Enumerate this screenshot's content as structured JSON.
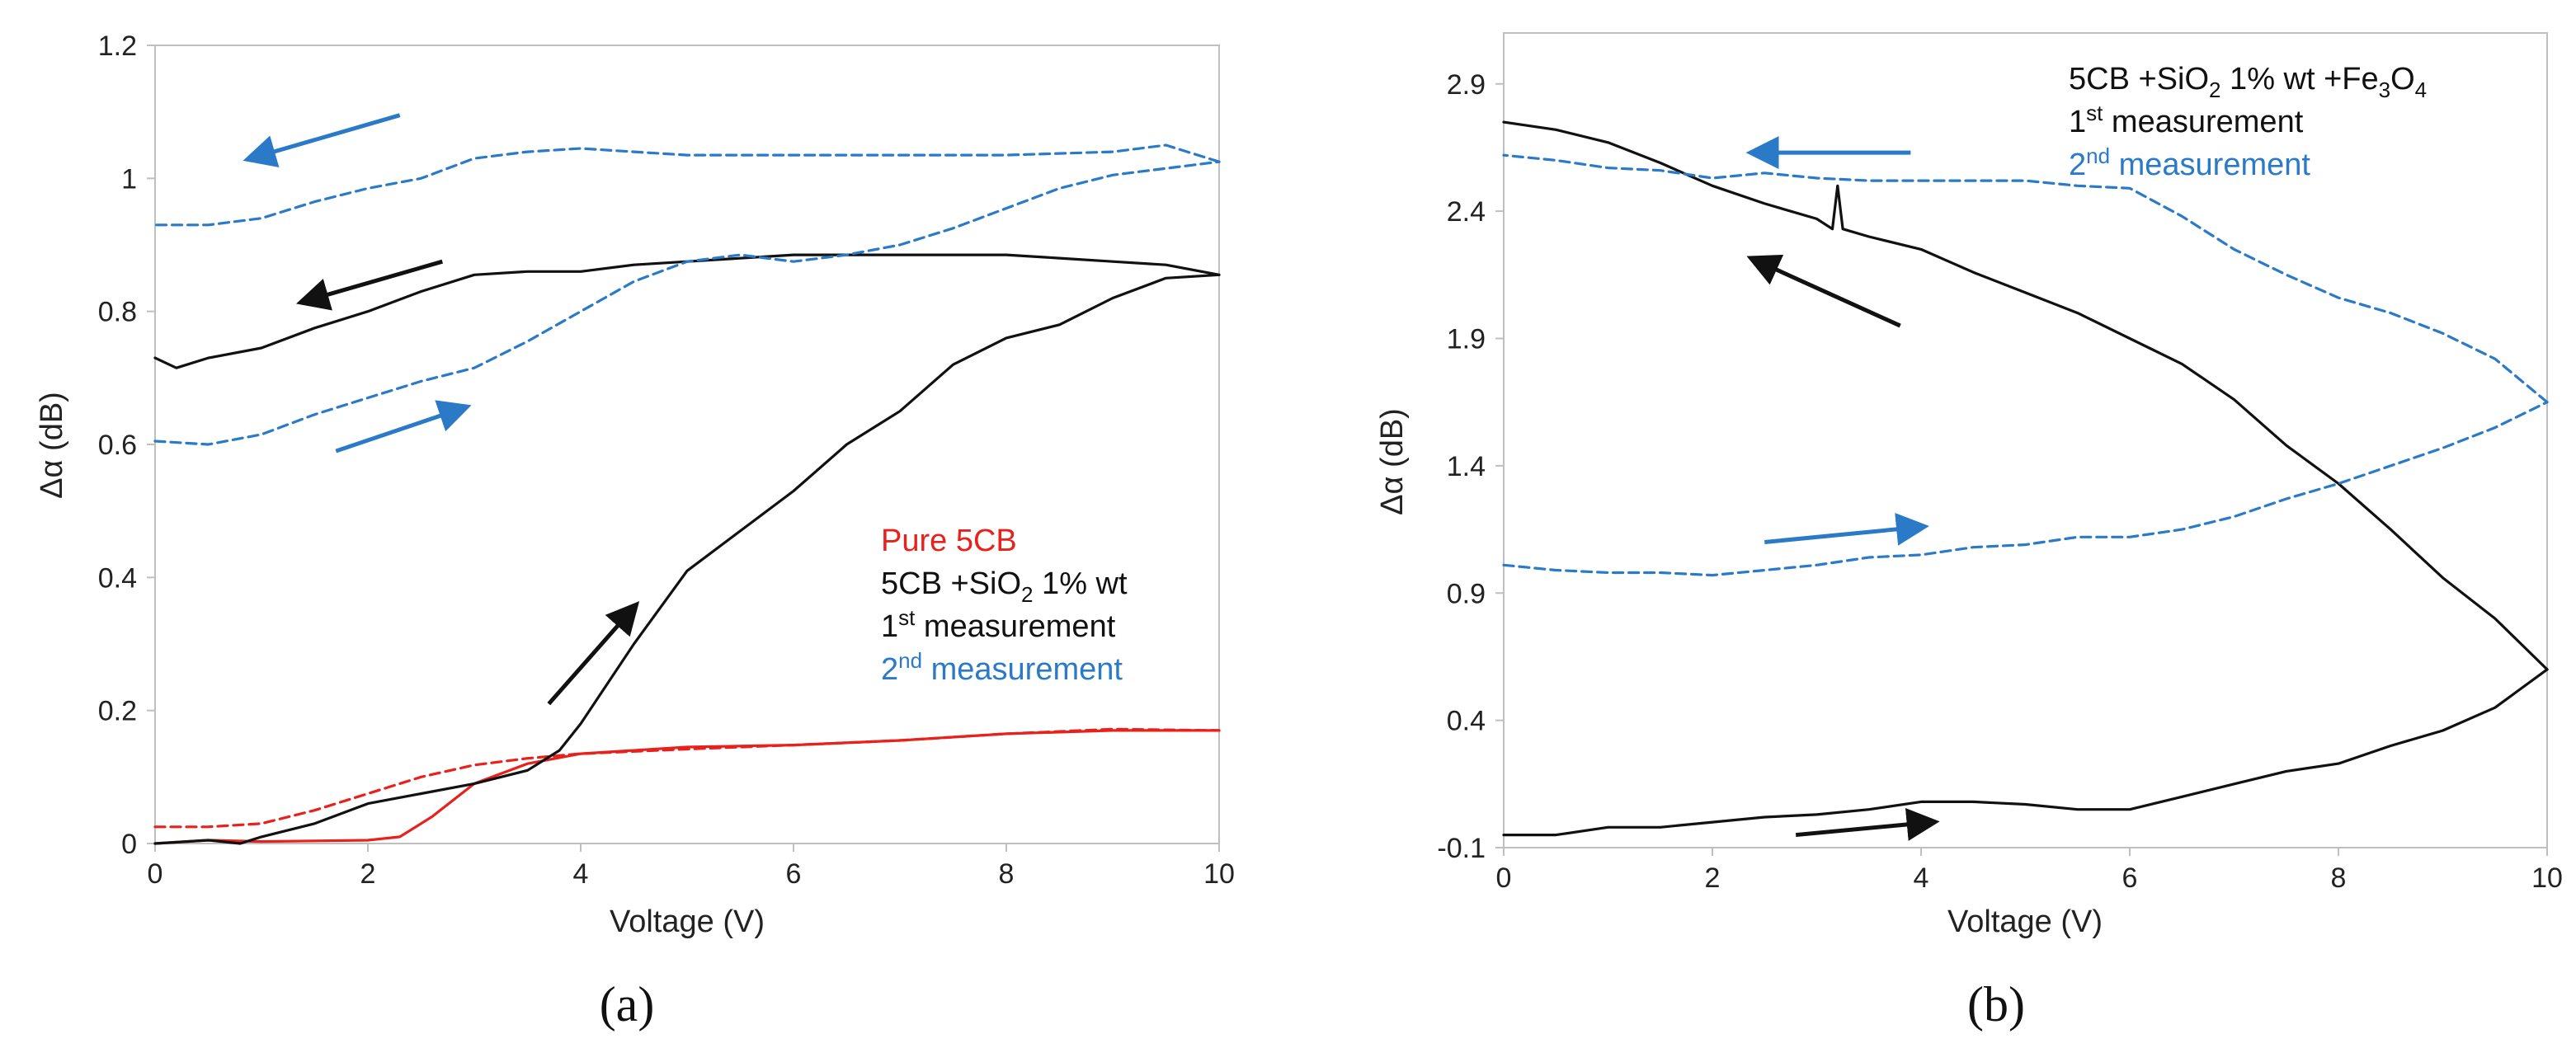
{
  "chart_data": [
    {
      "type": "line",
      "panel_label": "(a)",
      "xlabel": "Voltage (V)",
      "ylabel": "Δα (dB)",
      "xlim": [
        0,
        10
      ],
      "ylim": [
        0,
        1.2
      ],
      "xticks": [
        0,
        2,
        4,
        6,
        8,
        10
      ],
      "yticks": [
        0,
        0.2,
        0.4,
        0.6,
        0.8,
        1,
        1.2
      ],
      "grid": false,
      "legend": [
        {
          "text": "Pure 5CB",
          "color": "#e8211d"
        },
        {
          "text": "5CB +SiO",
          "sub": "2",
          "tail": " 1% wt",
          "color": "#111111"
        },
        {
          "text": "1",
          "sup": "st",
          "tail": " measurement",
          "color": "#111111"
        },
        {
          "text": "2",
          "sup": "nd",
          "tail": " measurement",
          "color": "#2a7ac8"
        }
      ],
      "series": [
        {
          "name": "Pure 5CB (1st, increasing)",
          "color": "#e8211d",
          "dash": false,
          "x": [
            0,
            0.5,
            1,
            1.5,
            2,
            2.3,
            2.6,
            3,
            3.5,
            4,
            5,
            6,
            7,
            8,
            9,
            10
          ],
          "y": [
            0,
            0.005,
            0.003,
            0.004,
            0.005,
            0.01,
            0.04,
            0.09,
            0.12,
            0.135,
            0.145,
            0.148,
            0.155,
            0.165,
            0.17,
            0.17
          ]
        },
        {
          "name": "Pure 5CB (2nd)",
          "color": "#e8211d",
          "dash": true,
          "x": [
            0,
            0.5,
            1,
            1.5,
            2,
            2.5,
            3,
            3.5,
            4,
            5,
            6,
            7,
            8,
            9,
            10
          ],
          "y": [
            0.025,
            0.025,
            0.03,
            0.05,
            0.075,
            0.1,
            0.118,
            0.128,
            0.135,
            0.142,
            0.148,
            0.155,
            0.165,
            0.172,
            0.17
          ]
        },
        {
          "name": "5CB +SiO2 1st increasing",
          "color": "#111111",
          "dash": false,
          "x": [
            0,
            0.5,
            0.8,
            1,
            1.5,
            2,
            2.5,
            3,
            3.5,
            3.8,
            4,
            4.5,
            5,
            5.5,
            6,
            6.5,
            7,
            7.5,
            8,
            8.5,
            9,
            9.5,
            10
          ],
          "y": [
            0,
            0.005,
            0.0,
            0.01,
            0.03,
            0.06,
            0.075,
            0.09,
            0.11,
            0.14,
            0.18,
            0.3,
            0.41,
            0.47,
            0.53,
            0.6,
            0.65,
            0.72,
            0.76,
            0.78,
            0.82,
            0.85,
            0.855
          ]
        },
        {
          "name": "5CB +SiO2 1st decreasing",
          "color": "#111111",
          "dash": false,
          "x": [
            10,
            9.5,
            9,
            8.5,
            8,
            7,
            6,
            5,
            4.5,
            4,
            3.5,
            3,
            2.5,
            2,
            1.5,
            1,
            0.5,
            0.2,
            0
          ],
          "y": [
            0.855,
            0.87,
            0.875,
            0.88,
            0.885,
            0.885,
            0.885,
            0.875,
            0.87,
            0.86,
            0.86,
            0.855,
            0.83,
            0.8,
            0.775,
            0.745,
            0.73,
            0.715,
            0.73
          ]
        },
        {
          "name": "2nd measurement increasing",
          "color": "#2a7ac8",
          "dash": true,
          "x": [
            0,
            0.5,
            1,
            1.5,
            2,
            2.5,
            3,
            3.5,
            4,
            4.5,
            5,
            5.5,
            6,
            6.5,
            7,
            7.5,
            8,
            8.5,
            9,
            9.5,
            10
          ],
          "y": [
            0.605,
            0.6,
            0.615,
            0.645,
            0.67,
            0.695,
            0.715,
            0.755,
            0.8,
            0.845,
            0.875,
            0.885,
            0.875,
            0.885,
            0.9,
            0.925,
            0.955,
            0.985,
            1.005,
            1.015,
            1.025
          ]
        },
        {
          "name": "2nd measurement decreasing",
          "color": "#2a7ac8",
          "dash": true,
          "x": [
            10,
            9.5,
            9,
            8,
            7,
            6,
            5,
            4.5,
            4,
            3.5,
            3,
            2.5,
            2,
            1.5,
            1,
            0.5,
            0
          ],
          "y": [
            1.025,
            1.05,
            1.04,
            1.035,
            1.035,
            1.035,
            1.035,
            1.04,
            1.045,
            1.04,
            1.03,
            1.0,
            0.985,
            0.965,
            0.94,
            0.93,
            0.93
          ]
        }
      ],
      "arrows": [
        {
          "color": "#2a7ac8",
          "x1": 2.3,
          "y1": 1.095,
          "x2": 0.9,
          "y2": 1.03
        },
        {
          "color": "#111111",
          "x1": 2.7,
          "y1": 0.875,
          "x2": 1.4,
          "y2": 0.815
        },
        {
          "color": "#2a7ac8",
          "x1": 1.7,
          "y1": 0.59,
          "x2": 2.9,
          "y2": 0.655
        },
        {
          "color": "#111111",
          "x1": 3.7,
          "y1": 0.21,
          "x2": 4.5,
          "y2": 0.355
        }
      ]
    },
    {
      "type": "line",
      "panel_label": "(b)",
      "xlabel": "Voltage (V)",
      "ylabel": "Δα (dB)",
      "xlim": [
        0,
        10
      ],
      "ylim": [
        -0.1,
        3.1
      ],
      "xticks": [
        0,
        2,
        4,
        6,
        8,
        10
      ],
      "yticks": [
        -0.1,
        0.4,
        0.9,
        1.4,
        1.9,
        2.4,
        2.9
      ],
      "grid": false,
      "legend": [
        {
          "text": "5CB +SiO",
          "sub": "2",
          "tail": " 1% wt +Fe",
          "sub2": "3",
          "tail2": "O",
          "sub3": "4",
          "color": "#111111"
        },
        {
          "text": "1",
          "sup": "st",
          "tail": " measurement",
          "color": "#111111"
        },
        {
          "text": "2",
          "sup": "nd",
          "tail": " measurement",
          "color": "#2a7ac8"
        }
      ],
      "series": [
        {
          "name": "1st increasing",
          "color": "#111111",
          "dash": false,
          "x": [
            0,
            0.5,
            1,
            1.5,
            2,
            2.5,
            3,
            3.5,
            4,
            4.5,
            5,
            5.5,
            6,
            6.5,
            7,
            7.5,
            8,
            8.5,
            9,
            9.5,
            10
          ],
          "y": [
            -0.05,
            -0.05,
            -0.02,
            -0.02,
            0.0,
            0.02,
            0.03,
            0.05,
            0.08,
            0.08,
            0.07,
            0.05,
            0.05,
            0.1,
            0.15,
            0.2,
            0.23,
            0.3,
            0.36,
            0.45,
            0.6
          ]
        },
        {
          "name": "1st decreasing",
          "color": "#111111",
          "dash": false,
          "x": [
            10,
            9.5,
            9,
            8.5,
            8,
            7.5,
            7,
            6.5,
            6,
            5.5,
            5,
            4.5,
            4,
            3.5,
            3.25,
            3.2,
            3.15,
            3,
            2.5,
            2,
            1.5,
            1,
            0.5,
            0
          ],
          "y": [
            0.6,
            0.8,
            0.96,
            1.15,
            1.33,
            1.48,
            1.66,
            1.8,
            1.9,
            2.0,
            2.08,
            2.16,
            2.25,
            2.3,
            2.33,
            2.5,
            2.33,
            2.37,
            2.43,
            2.5,
            2.59,
            2.67,
            2.72,
            2.75
          ]
        },
        {
          "name": "2nd increasing",
          "color": "#2a7ac8",
          "dash": true,
          "x": [
            0,
            0.5,
            1,
            1.5,
            2,
            2.5,
            3,
            3.5,
            4,
            4.5,
            5,
            5.5,
            6,
            6.5,
            7,
            7.5,
            8,
            8.5,
            9,
            9.5,
            10
          ],
          "y": [
            1.01,
            0.99,
            0.98,
            0.98,
            0.97,
            0.99,
            1.01,
            1.04,
            1.05,
            1.08,
            1.09,
            1.12,
            1.12,
            1.15,
            1.2,
            1.27,
            1.33,
            1.4,
            1.47,
            1.55,
            1.65
          ]
        },
        {
          "name": "2nd decreasing",
          "color": "#2a7ac8",
          "dash": true,
          "x": [
            10,
            9.5,
            9,
            8.5,
            8,
            7.5,
            7,
            6.5,
            6,
            5.5,
            5,
            4.5,
            4,
            3.5,
            3,
            2.5,
            2,
            1.5,
            1,
            0.5,
            0
          ],
          "y": [
            1.65,
            1.82,
            1.92,
            2.0,
            2.06,
            2.15,
            2.25,
            2.38,
            2.49,
            2.5,
            2.52,
            2.52,
            2.52,
            2.52,
            2.53,
            2.55,
            2.53,
            2.56,
            2.57,
            2.6,
            2.62
          ]
        }
      ],
      "arrows": [
        {
          "color": "#2a7ac8",
          "x1": 3.9,
          "y1": 2.63,
          "x2": 2.4,
          "y2": 2.63
        },
        {
          "color": "#111111",
          "x1": 3.8,
          "y1": 1.95,
          "x2": 2.4,
          "y2": 2.21
        },
        {
          "color": "#2a7ac8",
          "x1": 2.5,
          "y1": 1.1,
          "x2": 4.0,
          "y2": 1.16
        },
        {
          "color": "#111111",
          "x1": 2.8,
          "y1": -0.05,
          "x2": 4.1,
          "y2": 0.0
        }
      ]
    }
  ]
}
